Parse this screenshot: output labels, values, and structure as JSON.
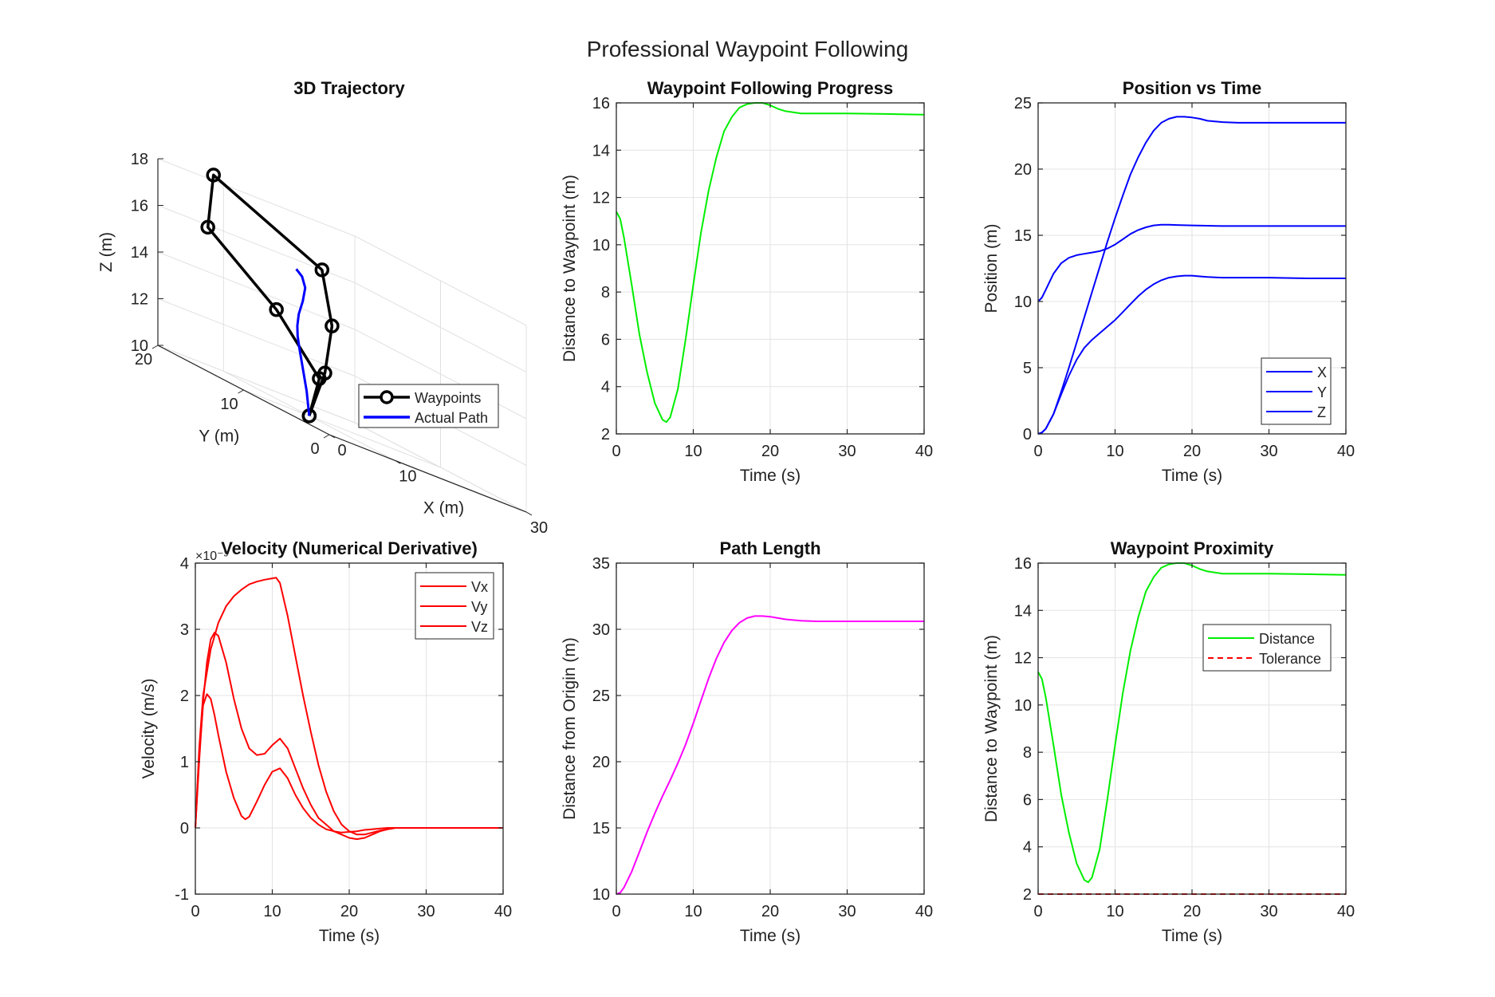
{
  "figure": {
    "title": "Professional Waypoint Following"
  },
  "chart_data": [
    {
      "id": "traj3d",
      "type": "line3d",
      "title": "3D Trajectory",
      "xlabel": "X (m)",
      "ylabel": "Y (m)",
      "zlabel": "Z (m)",
      "xlim": [
        0,
        30
      ],
      "ylim": [
        0,
        20
      ],
      "zlim": [
        10,
        18
      ],
      "xticks": [
        0,
        10,
        30
      ],
      "yticks": [
        0,
        10,
        20
      ],
      "zticks": [
        10,
        12,
        14,
        16,
        18
      ],
      "xtick_labels": [
        "0",
        "10",
        "30"
      ],
      "ytick_labels": [
        "0",
        "10",
        "20"
      ],
      "ztick_labels": [
        "10",
        "12",
        "14",
        "16",
        "18"
      ],
      "grid": true,
      "legend": {
        "location": "bottom-right",
        "entries": [
          "Waypoints",
          "Actual Path"
        ]
      },
      "series": [
        {
          "name": "Waypoints",
          "color": "#000000",
          "marker": "circle",
          "points": [
            [
              10,
              10,
              10
            ],
            [
              15,
              12,
              12
            ],
            [
              20,
              15,
              14
            ],
            [
              25,
              20,
              16
            ],
            [
              15,
              25,
              18
            ],
            [
              5,
              18,
              16
            ],
            [
              5,
              10,
              14
            ],
            [
              5,
              5,
              12
            ],
            [
              10,
              10,
              10
            ]
          ]
        },
        {
          "name": "Actual Path",
          "color": "#0000ff",
          "points": [
            [
              10,
              10,
              10
            ],
            [
              10,
              10.3,
              11
            ],
            [
              10,
              10.8,
              12
            ],
            [
              10.5,
              11.5,
              12.6
            ],
            [
              11.5,
              12.5,
              13.1
            ],
            [
              12.5,
              13.3,
              13.5
            ],
            [
              13.5,
              13.9,
              14
            ],
            [
              14.5,
              14.2,
              14.6
            ],
            [
              15.4,
              14.6,
              15.2
            ],
            [
              15.7,
              15.2,
              15.6
            ],
            [
              15.6,
              15.8,
              15.8
            ]
          ]
        }
      ]
    },
    {
      "id": "progress",
      "type": "line",
      "title": "Waypoint Following Progress",
      "xlabel": "Time (s)",
      "ylabel": "Distance to Waypoint (m)",
      "xlim": [
        0,
        40
      ],
      "ylim": [
        2,
        16
      ],
      "xticks": [
        0,
        10,
        20,
        30,
        40
      ],
      "yticks": [
        2,
        4,
        6,
        8,
        10,
        12,
        14,
        16
      ],
      "xtick_labels": [
        "0",
        "10",
        "20",
        "30",
        "40"
      ],
      "ytick_labels": [
        "2",
        "4",
        "6",
        "8",
        "10",
        "12",
        "14",
        "16"
      ],
      "grid": true,
      "series": [
        {
          "color": "#00ee00",
          "x": [
            0,
            0.5,
            1,
            2,
            3,
            4,
            5,
            6,
            6.5,
            7,
            8,
            9,
            10,
            11,
            12,
            13,
            14,
            15,
            16,
            17,
            18,
            19,
            20,
            21,
            22,
            24,
            26,
            30,
            35,
            40
          ],
          "y": [
            11.4,
            11.1,
            10.3,
            8.3,
            6.2,
            4.6,
            3.3,
            2.6,
            2.5,
            2.7,
            3.9,
            6.0,
            8.3,
            10.5,
            12.3,
            13.7,
            14.8,
            15.4,
            15.8,
            15.95,
            16.0,
            16.0,
            15.9,
            15.75,
            15.65,
            15.55,
            15.55,
            15.55,
            15.53,
            15.5
          ]
        }
      ]
    },
    {
      "id": "position",
      "type": "line",
      "title": "Position vs Time",
      "xlabel": "Time (s)",
      "ylabel": "Position (m)",
      "xlim": [
        0,
        40
      ],
      "ylim": [
        0,
        25
      ],
      "xticks": [
        0,
        10,
        20,
        30,
        40
      ],
      "yticks": [
        0,
        5,
        10,
        15,
        20,
        25
      ],
      "xtick_labels": [
        "0",
        "10",
        "20",
        "30",
        "40"
      ],
      "ytick_labels": [
        "0",
        "5",
        "10",
        "15",
        "20",
        "25"
      ],
      "grid": true,
      "legend": {
        "location": "bottom-right",
        "entries": [
          "X",
          "Y",
          "Z"
        ]
      },
      "series": [
        {
          "name": "X",
          "color": "#0000ff",
          "x": [
            0,
            0.5,
            1,
            2,
            3,
            4,
            5,
            6,
            7,
            8,
            9,
            10,
            11,
            12,
            13,
            14,
            15,
            16,
            17,
            18,
            19,
            20,
            21,
            22,
            24,
            26,
            30,
            35,
            40
          ],
          "y": [
            0,
            0.1,
            0.4,
            1.5,
            3.2,
            5.0,
            6.9,
            8.8,
            10.7,
            12.6,
            14.5,
            16.3,
            18.0,
            19.6,
            20.9,
            22.0,
            22.9,
            23.5,
            23.8,
            23.95,
            23.95,
            23.9,
            23.8,
            23.65,
            23.55,
            23.5,
            23.5,
            23.5,
            23.5
          ]
        },
        {
          "name": "Y",
          "color": "#0000ff",
          "x": [
            0,
            0.5,
            1,
            2,
            3,
            4,
            5,
            6,
            7,
            8,
            9,
            10,
            11,
            12,
            13,
            14,
            15,
            16,
            17,
            18,
            20,
            22,
            24,
            26,
            30,
            35,
            40
          ],
          "y": [
            10,
            10.3,
            10.9,
            12.1,
            12.9,
            13.3,
            13.5,
            13.6,
            13.7,
            13.8,
            14.0,
            14.3,
            14.7,
            15.1,
            15.4,
            15.6,
            15.75,
            15.8,
            15.8,
            15.78,
            15.75,
            15.72,
            15.7,
            15.7,
            15.7,
            15.7,
            15.7
          ]
        },
        {
          "name": "Z",
          "color": "#0000ff",
          "x": [
            0,
            0.5,
            1,
            2,
            3,
            4,
            5,
            6,
            7,
            8,
            9,
            10,
            11,
            12,
            13,
            14,
            15,
            16,
            17,
            18,
            19,
            20,
            21,
            22,
            24,
            26,
            30,
            35,
            40
          ],
          "y": [
            0,
            0.1,
            0.4,
            1.5,
            3.0,
            4.4,
            5.6,
            6.5,
            7.1,
            7.6,
            8.1,
            8.6,
            9.2,
            9.8,
            10.4,
            10.9,
            11.3,
            11.6,
            11.8,
            11.9,
            11.95,
            11.95,
            11.9,
            11.85,
            11.8,
            11.8,
            11.8,
            11.75,
            11.75
          ]
        }
      ]
    },
    {
      "id": "velocity",
      "type": "line",
      "title": "Velocity (Numerical Derivative)",
      "xlabel": "Time (s)",
      "ylabel": "Velocity (m/s)",
      "y_exponent": "×10⁻³",
      "xlim": [
        0,
        40
      ],
      "ylim": [
        -1,
        4
      ],
      "xticks": [
        0,
        10,
        20,
        30,
        40
      ],
      "yticks": [
        -1,
        0,
        1,
        2,
        3,
        4
      ],
      "xtick_labels": [
        "0",
        "10",
        "20",
        "30",
        "40"
      ],
      "ytick_labels": [
        "-1",
        "0",
        "1",
        "2",
        "3",
        "4"
      ],
      "grid": true,
      "legend": {
        "location": "top-right",
        "entries": [
          "Vx",
          "Vy",
          "Vz"
        ]
      },
      "series": [
        {
          "name": "Vx",
          "color": "#ff0000",
          "x": [
            0,
            0.5,
            1,
            2,
            3,
            4,
            5,
            6,
            7,
            8,
            9,
            10,
            10.5,
            11,
            12,
            13,
            14,
            15,
            16,
            17,
            18,
            19,
            20,
            21,
            22,
            23,
            24,
            25,
            26,
            28,
            30,
            35,
            40
          ],
          "y": [
            0,
            1.2,
            2.0,
            2.7,
            3.1,
            3.35,
            3.5,
            3.6,
            3.68,
            3.72,
            3.75,
            3.77,
            3.78,
            3.7,
            3.2,
            2.6,
            2.0,
            1.45,
            0.95,
            0.55,
            0.25,
            0.05,
            -0.05,
            -0.1,
            -0.1,
            -0.07,
            -0.04,
            -0.02,
            0,
            0,
            0,
            0,
            0
          ]
        },
        {
          "name": "Vy",
          "color": "#ff0000",
          "x": [
            0,
            0.5,
            1,
            1.5,
            2,
            2.5,
            3,
            4,
            5,
            6,
            7,
            8,
            9,
            10,
            11,
            12,
            13,
            14,
            15,
            16,
            17,
            18,
            19,
            20,
            21,
            22,
            23,
            24,
            25,
            26,
            28,
            30,
            35,
            40
          ],
          "y": [
            0,
            1.0,
            1.9,
            2.5,
            2.85,
            2.95,
            2.9,
            2.5,
            1.95,
            1.5,
            1.2,
            1.1,
            1.12,
            1.25,
            1.35,
            1.2,
            0.9,
            0.6,
            0.35,
            0.15,
            0.05,
            -0.05,
            -0.1,
            -0.15,
            -0.17,
            -0.15,
            -0.1,
            -0.05,
            -0.02,
            0,
            0,
            0,
            0,
            0
          ]
        },
        {
          "name": "Vz",
          "color": "#ff0000",
          "x": [
            0,
            0.5,
            1,
            1.5,
            2,
            2.5,
            3,
            4,
            5,
            6,
            6.5,
            7,
            8,
            9,
            10,
            11,
            12,
            13,
            14,
            15,
            16,
            17,
            18,
            19,
            20,
            21,
            22,
            23,
            24,
            25,
            26,
            28,
            30,
            35,
            40
          ],
          "y": [
            0,
            1.1,
            1.85,
            2.02,
            1.95,
            1.7,
            1.4,
            0.85,
            0.45,
            0.18,
            0.13,
            0.17,
            0.4,
            0.65,
            0.85,
            0.9,
            0.75,
            0.5,
            0.3,
            0.15,
            0.05,
            -0.02,
            -0.05,
            -0.07,
            -0.06,
            -0.05,
            -0.03,
            -0.02,
            -0.01,
            0,
            0,
            0,
            0,
            0,
            0
          ]
        }
      ]
    },
    {
      "id": "pathlen",
      "type": "line",
      "title": "Path Length",
      "xlabel": "Time (s)",
      "ylabel": "Distance from Origin (m)",
      "xlim": [
        0,
        40
      ],
      "ylim": [
        10,
        35
      ],
      "xticks": [
        0,
        10,
        20,
        30,
        40
      ],
      "yticks": [
        10,
        15,
        20,
        25,
        30,
        35
      ],
      "xtick_labels": [
        "0",
        "10",
        "20",
        "30",
        "40"
      ],
      "ytick_labels": [
        "10",
        "15",
        "20",
        "25",
        "30",
        "35"
      ],
      "grid": true,
      "series": [
        {
          "color": "#ff00ff",
          "x": [
            0,
            0.5,
            1,
            2,
            3,
            4,
            5,
            6,
            7,
            8,
            9,
            10,
            11,
            12,
            13,
            14,
            15,
            16,
            17,
            18,
            19,
            20,
            21,
            22,
            24,
            26,
            30,
            35,
            40
          ],
          "y": [
            10.0,
            10.1,
            10.5,
            11.7,
            13.2,
            14.7,
            16.1,
            17.4,
            18.6,
            19.9,
            21.3,
            22.9,
            24.6,
            26.3,
            27.8,
            29.0,
            29.9,
            30.5,
            30.85,
            31.0,
            31.0,
            30.95,
            30.85,
            30.75,
            30.65,
            30.6,
            30.6,
            30.6,
            30.6
          ]
        }
      ]
    },
    {
      "id": "proximity",
      "type": "line",
      "title": "Waypoint Proximity",
      "xlabel": "Time (s)",
      "ylabel": "Distance to Waypoint (m)",
      "xlim": [
        0,
        40
      ],
      "ylim": [
        2,
        16
      ],
      "xticks": [
        0,
        10,
        20,
        30,
        40
      ],
      "yticks": [
        2,
        4,
        6,
        8,
        10,
        12,
        14,
        16
      ],
      "xtick_labels": [
        "0",
        "10",
        "20",
        "30",
        "40"
      ],
      "ytick_labels": [
        "2",
        "4",
        "6",
        "8",
        "10",
        "12",
        "14",
        "16"
      ],
      "grid": true,
      "legend": {
        "location": "upper-right",
        "entries": [
          "Distance",
          "Tolerance"
        ]
      },
      "series": [
        {
          "name": "Distance",
          "color": "#00ee00",
          "x": [
            0,
            0.5,
            1,
            2,
            3,
            4,
            5,
            6,
            6.5,
            7,
            8,
            9,
            10,
            11,
            12,
            13,
            14,
            15,
            16,
            17,
            18,
            19,
            20,
            21,
            22,
            24,
            26,
            30,
            35,
            40
          ],
          "y": [
            11.4,
            11.1,
            10.3,
            8.3,
            6.2,
            4.6,
            3.3,
            2.6,
            2.5,
            2.7,
            3.9,
            6.0,
            8.3,
            10.5,
            12.3,
            13.7,
            14.8,
            15.4,
            15.8,
            15.95,
            16.0,
            16.0,
            15.9,
            15.75,
            15.65,
            15.55,
            15.55,
            15.55,
            15.53,
            15.5
          ]
        },
        {
          "name": "Tolerance",
          "color": "#ff0000",
          "dashed": true,
          "x": [
            0,
            40
          ],
          "y": [
            2,
            2
          ]
        }
      ]
    }
  ]
}
